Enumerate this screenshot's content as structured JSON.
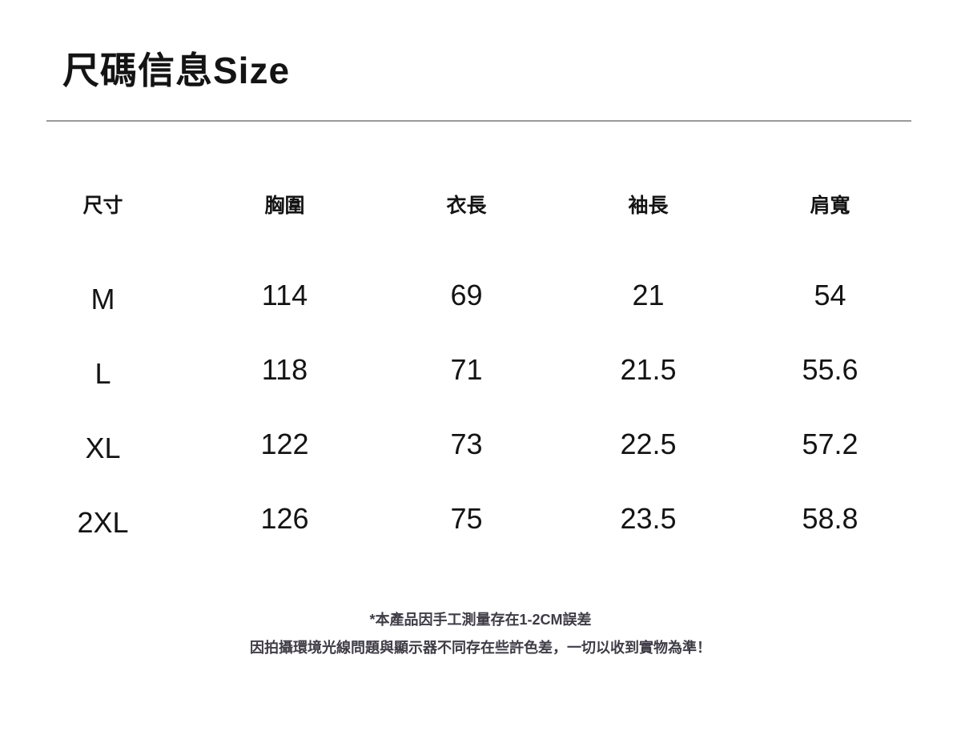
{
  "page": {
    "title": "尺碼信息Size"
  },
  "size_table": {
    "columns": [
      "尺寸",
      "胸圍",
      "衣長",
      "袖長",
      "肩寬"
    ],
    "rows": [
      [
        "M",
        "114",
        "69",
        "21",
        "54"
      ],
      [
        "L",
        "118",
        "71",
        "21.5",
        "55.6"
      ],
      [
        "XL",
        "122",
        "73",
        "22.5",
        "57.2"
      ],
      [
        "2XL",
        "126",
        "75",
        "23.5",
        "58.8"
      ]
    ]
  },
  "notes": {
    "measurement_tolerance": "*本產品因手工測量存在1-2CM誤差",
    "color_disclaimer": "因拍攝環境光線問題與顯示器不同存在些許色差，一切以收到實物為準！"
  },
  "colors": {
    "background": "#ffffff",
    "text": "#141414",
    "divider": "#999999",
    "note_text": "#3f3c46"
  }
}
